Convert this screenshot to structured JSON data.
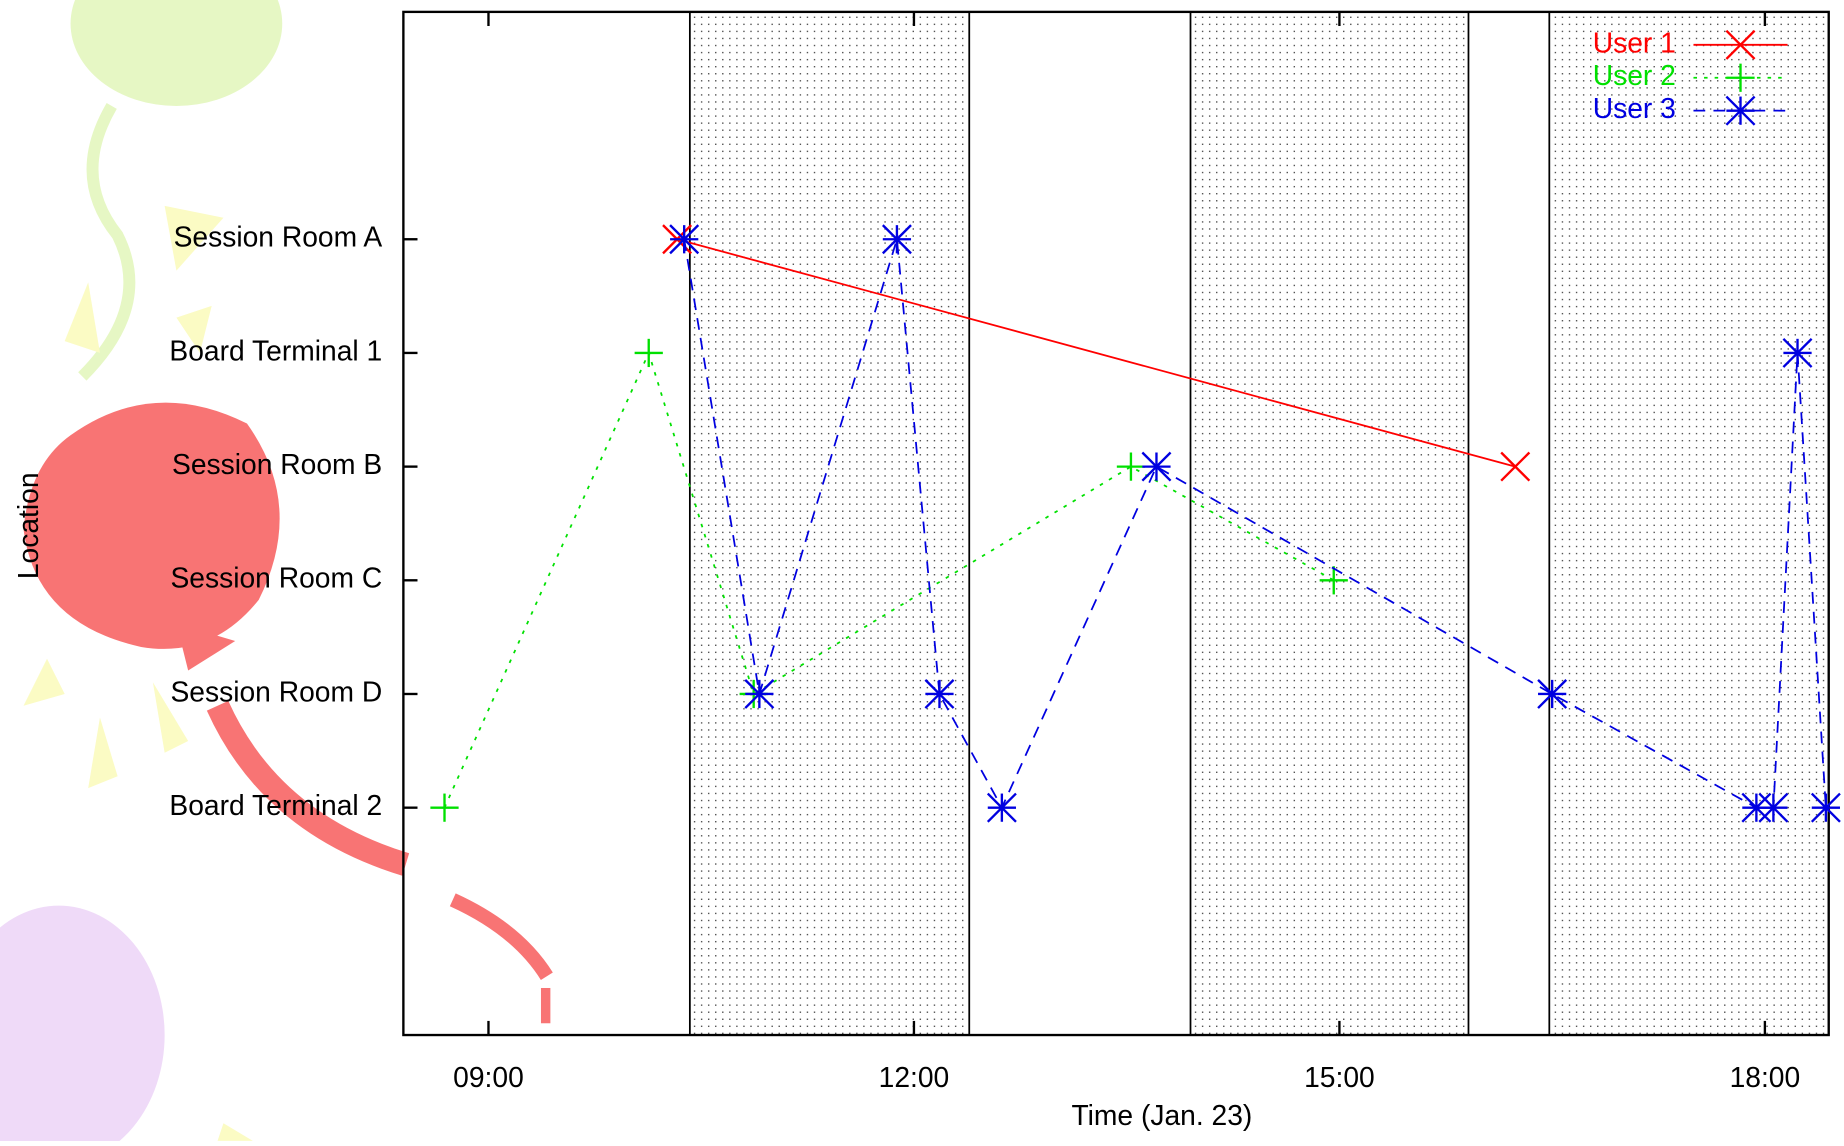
{
  "chart_data": {
    "type": "line",
    "xlabel": "Time (Jan. 23)",
    "ylabel": "Location",
    "xlim": [
      8.4,
      18.45
    ],
    "ylim": [
      -1,
      8
    ],
    "xticks": [
      {
        "value": 9,
        "label": "09:00"
      },
      {
        "value": 12,
        "label": "12:00"
      },
      {
        "value": 15,
        "label": "15:00"
      },
      {
        "value": 18,
        "label": "18:00"
      }
    ],
    "yticks": [
      {
        "value": 6,
        "label": "Session Room A"
      },
      {
        "value": 5,
        "label": "Board Terminal 1"
      },
      {
        "value": 4,
        "label": "Session Room B"
      },
      {
        "value": 3,
        "label": "Session Room C"
      },
      {
        "value": 2,
        "label": "Session Room D"
      },
      {
        "value": 1,
        "label": "Board Terminal 2"
      }
    ],
    "shaded": [
      [
        10.42,
        12.39
      ],
      [
        13.95,
        15.91
      ],
      [
        16.48,
        18.45
      ]
    ],
    "legend": "top-right",
    "series": [
      {
        "name": "User 1",
        "color": "#ff0000",
        "marker": "x",
        "dash": "solid",
        "x": [
          10.33,
          16.24
        ],
        "values": [
          6,
          4
        ]
      },
      {
        "name": "User 2",
        "color": "#00e000",
        "marker": "plus",
        "dash": "dotted",
        "x": [
          8.69,
          10.13,
          10.87,
          13.53,
          14.96
        ],
        "values": [
          1,
          5,
          2,
          4,
          3
        ]
      },
      {
        "name": "User 3",
        "color": "#0000e0",
        "marker": "star",
        "dash": "dashed",
        "x": [
          10.38,
          10.91,
          11.88,
          12.18,
          12.62,
          13.71,
          16.5,
          17.94,
          18.06,
          18.23,
          18.43
        ],
        "values": [
          6,
          2,
          6,
          2,
          1,
          4,
          2,
          1,
          1,
          5,
          1
        ]
      }
    ]
  }
}
